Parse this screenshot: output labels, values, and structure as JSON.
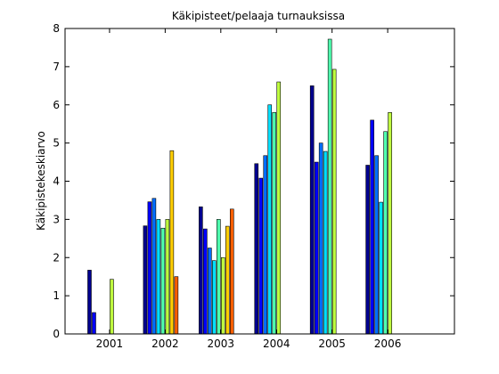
{
  "chart_data": {
    "type": "bar",
    "title": "Käkipisteet/pelaaja turnauksissa",
    "xlabel": "",
    "ylabel": "Käkipistekeskiarvo",
    "categories": [
      "2001",
      "2002",
      "2003",
      "2004",
      "2005",
      "2006"
    ],
    "ylim": [
      0,
      8
    ],
    "yticks": [
      "0",
      "1",
      "2",
      "3",
      "4",
      "5",
      "6",
      "7",
      "8"
    ],
    "grid": false,
    "legend": "none",
    "series": [
      {
        "color": "#00008f",
        "values": [
          1.67,
          2.83,
          3.33,
          4.46,
          6.5,
          4.42
        ]
      },
      {
        "color": "#0000ff",
        "values": [
          0.56,
          3.46,
          2.75,
          4.08,
          4.5,
          5.6
        ]
      },
      {
        "color": "#006fff",
        "values": [
          null,
          3.55,
          2.25,
          4.67,
          5.0,
          4.67
        ]
      },
      {
        "color": "#00dfff",
        "values": [
          null,
          3.0,
          1.92,
          6.0,
          4.78,
          3.45
        ]
      },
      {
        "color": "#4fffaf",
        "values": [
          null,
          2.77,
          3.0,
          5.8,
          7.72,
          5.3
        ]
      },
      {
        "color": "#bfff3f",
        "values": [
          1.43,
          3.0,
          2.0,
          6.6,
          6.93,
          5.8
        ]
      },
      {
        "color": "#ffcf00",
        "values": [
          null,
          4.8,
          2.82,
          null,
          null,
          null
        ]
      },
      {
        "color": "#ff5f00",
        "values": [
          null,
          1.5,
          3.27,
          null,
          null,
          null
        ]
      },
      {
        "color": "#ef0000",
        "values": [
          null,
          null,
          null,
          null,
          null,
          null
        ]
      },
      {
        "color": "#7f0000",
        "values": [
          null,
          null,
          null,
          null,
          null,
          null
        ]
      }
    ]
  }
}
